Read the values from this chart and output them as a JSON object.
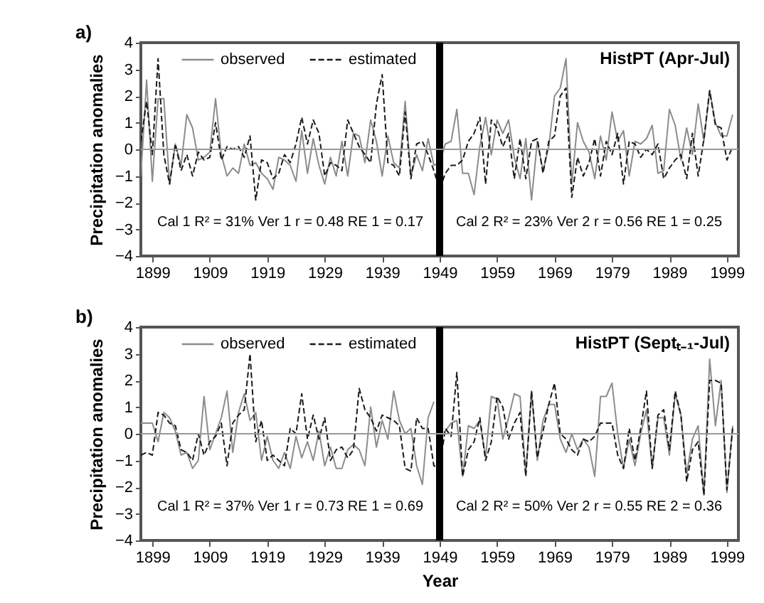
{
  "chart_data": [
    {
      "type": "line",
      "title": "HistPT (Apr-Jul)",
      "ylabel": "Precipitation anomalies",
      "xlim": [
        1897,
        2001
      ],
      "ylim": [
        -4,
        4
      ],
      "xticks": [
        1899,
        1909,
        1919,
        1929,
        1939,
        1949,
        1959,
        1969,
        1979,
        1989,
        1999
      ],
      "yticks": [
        -4,
        -3,
        -2,
        -1,
        0,
        1,
        2,
        3,
        4
      ],
      "legend": "top left",
      "annotations": [
        "a)",
        "Cal 1 R² = 31%   Ver 1 r = 0.48   RE 1 = 0.17",
        "Cal 2 R² = 23%   Ver 2 r = 0.56   RE 1 = 0.25"
      ],
      "ref_lines": [
        {
          "axis": "x",
          "value": 1949,
          "color": "#000000"
        },
        {
          "axis": "y",
          "value": 0,
          "color": "#999999"
        }
      ],
      "x": [
        1897,
        1898,
        1899,
        1900,
        1901,
        1902,
        1903,
        1904,
        1905,
        1906,
        1907,
        1908,
        1909,
        1910,
        1911,
        1912,
        1913,
        1914,
        1915,
        1916,
        1917,
        1918,
        1919,
        1920,
        1921,
        1922,
        1923,
        1924,
        1925,
        1926,
        1927,
        1928,
        1929,
        1930,
        1931,
        1932,
        1933,
        1934,
        1935,
        1936,
        1937,
        1938,
        1939,
        1940,
        1941,
        1942,
        1943,
        1944,
        1945,
        1946,
        1947,
        1948,
        1949,
        1950,
        1951,
        1952,
        1953,
        1954,
        1955,
        1956,
        1957,
        1958,
        1959,
        1960,
        1961,
        1962,
        1963,
        1964,
        1965,
        1966,
        1967,
        1968,
        1969,
        1970,
        1971,
        1972,
        1973,
        1974,
        1975,
        1976,
        1977,
        1978,
        1979,
        1980,
        1981,
        1982,
        1983,
        1984,
        1985,
        1986,
        1987,
        1988,
        1989,
        1990,
        1991,
        1992,
        1993,
        1994,
        1995,
        1996,
        1997,
        1998,
        1999,
        2000
      ],
      "series": [
        {
          "name": "observed",
          "color": "#8c8c8c",
          "line_style": "solid",
          "values": [
            -1.0,
            2.6,
            -1.2,
            1.9,
            1.9,
            -1.3,
            0.2,
            -0.6,
            1.3,
            0.8,
            -0.4,
            -0.3,
            -0.1,
            1.9,
            -0.2,
            -1.0,
            -0.7,
            -0.9,
            0.2,
            -0.6,
            -0.5,
            -0.9,
            -1.1,
            -1.5,
            -0.3,
            -0.4,
            -0.6,
            -1.2,
            0.7,
            -0.9,
            0.4,
            -0.6,
            -1.3,
            -0.3,
            -1.0,
            0.3,
            -1.0,
            0.6,
            0.5,
            -0.5,
            1.1,
            0.3,
            -1.0,
            0.5,
            -0.5,
            -0.7,
            1.8,
            -1.0,
            -0.2,
            -0.8,
            0.4,
            -0.6,
            -0.5,
            0.2,
            0.3,
            1.5,
            -0.9,
            -0.9,
            -1.7,
            0.1,
            1.2,
            -0.2,
            1.1,
            0.6,
            1.1,
            -0.3,
            -1.1,
            0.4,
            -1.9,
            0.3,
            -0.8,
            0.1,
            2.0,
            2.3,
            3.4,
            -1.3,
            1.0,
            0.3,
            -0.1,
            -1.1,
            0.5,
            -0.4,
            1.4,
            0.3,
            0.7,
            -1.0,
            0.3,
            0.2,
            0.4,
            0.9,
            -0.9,
            -0.8,
            1.5,
            0.9,
            -0.4,
            0.8,
            -0.2,
            1.7,
            0.3,
            2.2,
            1.0,
            0.5,
            0.5,
            1.3
          ]
        },
        {
          "name": "estimated",
          "color": "#1a1a1a",
          "line_style": "dashed",
          "values": [
            0.3,
            1.8,
            -0.2,
            3.4,
            -0.2,
            -1.3,
            0.2,
            -0.8,
            -0.2,
            -1.0,
            -0.1,
            -0.4,
            -0.3,
            1.0,
            -0.4,
            0.1,
            0.0,
            0.1,
            -0.3,
            0.5,
            -1.9,
            -0.4,
            -0.5,
            -1.1,
            -0.9,
            -0.2,
            -0.5,
            0.2,
            1.2,
            0.2,
            1.1,
            0.6,
            -1.0,
            -0.5,
            -0.6,
            -0.8,
            1.1,
            0.6,
            0.1,
            -0.2,
            -0.5,
            1.7,
            2.8,
            -0.5,
            -0.6,
            -1.0,
            1.4,
            -1.1,
            0.2,
            0.3,
            -0.2,
            -0.8,
            -1.5,
            -0.9,
            -0.6,
            -0.6,
            -0.4,
            0.3,
            0.6,
            1.2,
            -1.3,
            1.1,
            0.8,
            0.1,
            0.6,
            -1.1,
            0.4,
            -1.1,
            0.3,
            0.4,
            -0.9,
            0.3,
            0.5,
            2.0,
            2.3,
            -1.8,
            -0.3,
            -1.0,
            -0.5,
            0.4,
            -1.0,
            0.3,
            -0.2,
            0.6,
            -1.3,
            0.3,
            0.2,
            -0.3,
            0.0,
            -0.2,
            0.2,
            -1.1,
            -0.7,
            -0.4,
            -0.2,
            -1.1,
            0.6,
            -1.0,
            0.4,
            2.2,
            0.9,
            0.8,
            -0.4,
            0.1
          ]
        }
      ]
    },
    {
      "type": "line",
      "title": "HistPT (Septₜ₋₁-Jul)",
      "xlabel": "Year",
      "ylabel": "Precipitation anomalies",
      "xlim": [
        1897,
        2001
      ],
      "ylim": [
        -4,
        4
      ],
      "xticks": [
        1899,
        1909,
        1919,
        1929,
        1939,
        1949,
        1959,
        1969,
        1979,
        1989,
        1999
      ],
      "yticks": [
        -4,
        -3,
        -2,
        -1,
        0,
        1,
        2,
        3,
        4
      ],
      "legend": "top left",
      "annotations": [
        "b)",
        "Cal 1 R² = 37%   Ver 1 r = 0.73   RE 1 = 0.69",
        "Cal 2 R² = 50%   Ver 2 r = 0.55   RE 2 = 0.36"
      ],
      "ref_lines": [
        {
          "axis": "x",
          "value": 1949,
          "color": "#000000"
        },
        {
          "axis": "y",
          "value": 0,
          "color": "#999999"
        }
      ],
      "x": [
        1897,
        1898,
        1899,
        1900,
        1901,
        1902,
        1903,
        1904,
        1905,
        1906,
        1907,
        1908,
        1909,
        1910,
        1911,
        1912,
        1913,
        1914,
        1915,
        1916,
        1917,
        1918,
        1919,
        1920,
        1921,
        1922,
        1923,
        1924,
        1925,
        1926,
        1927,
        1928,
        1929,
        1930,
        1931,
        1932,
        1933,
        1934,
        1935,
        1936,
        1937,
        1938,
        1939,
        1940,
        1941,
        1942,
        1943,
        1944,
        1945,
        1946,
        1947,
        1948,
        1949,
        1950,
        1951,
        1952,
        1953,
        1954,
        1955,
        1956,
        1957,
        1958,
        1959,
        1960,
        1961,
        1962,
        1963,
        1964,
        1965,
        1966,
        1967,
        1968,
        1969,
        1970,
        1971,
        1972,
        1973,
        1974,
        1975,
        1976,
        1977,
        1978,
        1979,
        1980,
        1981,
        1982,
        1983,
        1984,
        1985,
        1986,
        1987,
        1988,
        1989,
        1990,
        1991,
        1992,
        1993,
        1994,
        1995,
        1996,
        1997,
        1998,
        1999,
        2000
      ],
      "series": [
        {
          "name": "observed",
          "color": "#8c8c8c",
          "line_style": "solid",
          "values": [
            0.4,
            0.4,
            0.4,
            -0.3,
            0.8,
            0.6,
            0.1,
            -0.8,
            -0.7,
            -1.3,
            -1.0,
            1.4,
            -0.6,
            0.0,
            0.6,
            1.6,
            -0.7,
            0.8,
            1.5,
            0.5,
            0.8,
            -1.0,
            -0.1,
            -1.0,
            -1.3,
            -0.7,
            -1.3,
            -0.1,
            -0.9,
            -0.3,
            -1.0,
            0.1,
            -1.2,
            -0.5,
            -1.3,
            -1.3,
            -0.6,
            -0.4,
            -0.6,
            -1.2,
            1.0,
            -0.5,
            0.5,
            -0.2,
            1.6,
            0.5,
            0.0,
            0.2,
            -1.2,
            -1.9,
            0.6,
            1.2,
            null,
            0.1,
            0.4,
            0.5,
            -1.6,
            0.3,
            0.2,
            0.5,
            -0.9,
            1.4,
            1.3,
            -0.2,
            0.6,
            1.5,
            1.4,
            -1.5,
            1.6,
            -1.0,
            0.5,
            1.1,
            1.1,
            -0.2,
            -0.7,
            0.0,
            -0.6,
            -0.2,
            -0.5,
            -1.6,
            1.4,
            1.4,
            1.9,
            0.0,
            -1.3,
            -0.2,
            -1.2,
            0.0,
            0.9,
            -1.3,
            0.6,
            0.6,
            -0.8,
            1.5,
            0.7,
            -1.5,
            -0.2,
            0.3,
            -2.3,
            2.8,
            0.3,
            2.0,
            -2.2,
            0.3
          ]
        },
        {
          "name": "estimated",
          "color": "#1a1a1a",
          "line_style": "dashed",
          "values": [
            -0.8,
            -0.7,
            -0.8,
            0.8,
            0.7,
            0.4,
            0.3,
            -0.6,
            -0.7,
            -1.0,
            0.0,
            -0.8,
            -0.3,
            -0.1,
            0.4,
            -1.2,
            0.4,
            0.7,
            0.9,
            3.0,
            -0.3,
            0.5,
            -1.0,
            -0.8,
            -1.0,
            -1.2,
            0.2,
            0.0,
            1.5,
            -0.2,
            0.7,
            -0.2,
            0.6,
            -1.0,
            -0.6,
            -0.5,
            -0.9,
            -0.6,
            1.7,
            0.9,
            0.6,
            0.1,
            0.7,
            0.6,
            0.5,
            0.3,
            -1.3,
            -1.4,
            0.6,
            0.2,
            0.2,
            -1.2,
            -1.3,
            0.2,
            -0.1,
            2.3,
            -1.6,
            -0.6,
            -0.3,
            0.6,
            -1.0,
            -0.3,
            1.4,
            1.0,
            -0.2,
            0.4,
            0.8,
            -1.6,
            1.6,
            -0.9,
            0.1,
            1.1,
            1.9,
            0.0,
            -0.2,
            -0.6,
            -0.8,
            -0.2,
            -0.3,
            -0.1,
            0.4,
            0.4,
            0.4,
            -0.8,
            -1.3,
            0.2,
            -1.0,
            0.2,
            1.6,
            -1.3,
            0.7,
            0.9,
            -0.6,
            1.6,
            0.7,
            -1.8,
            -0.6,
            -0.3,
            -2.3,
            2.0,
            2.0,
            1.9,
            -2.1,
            0.2
          ]
        }
      ]
    }
  ]
}
